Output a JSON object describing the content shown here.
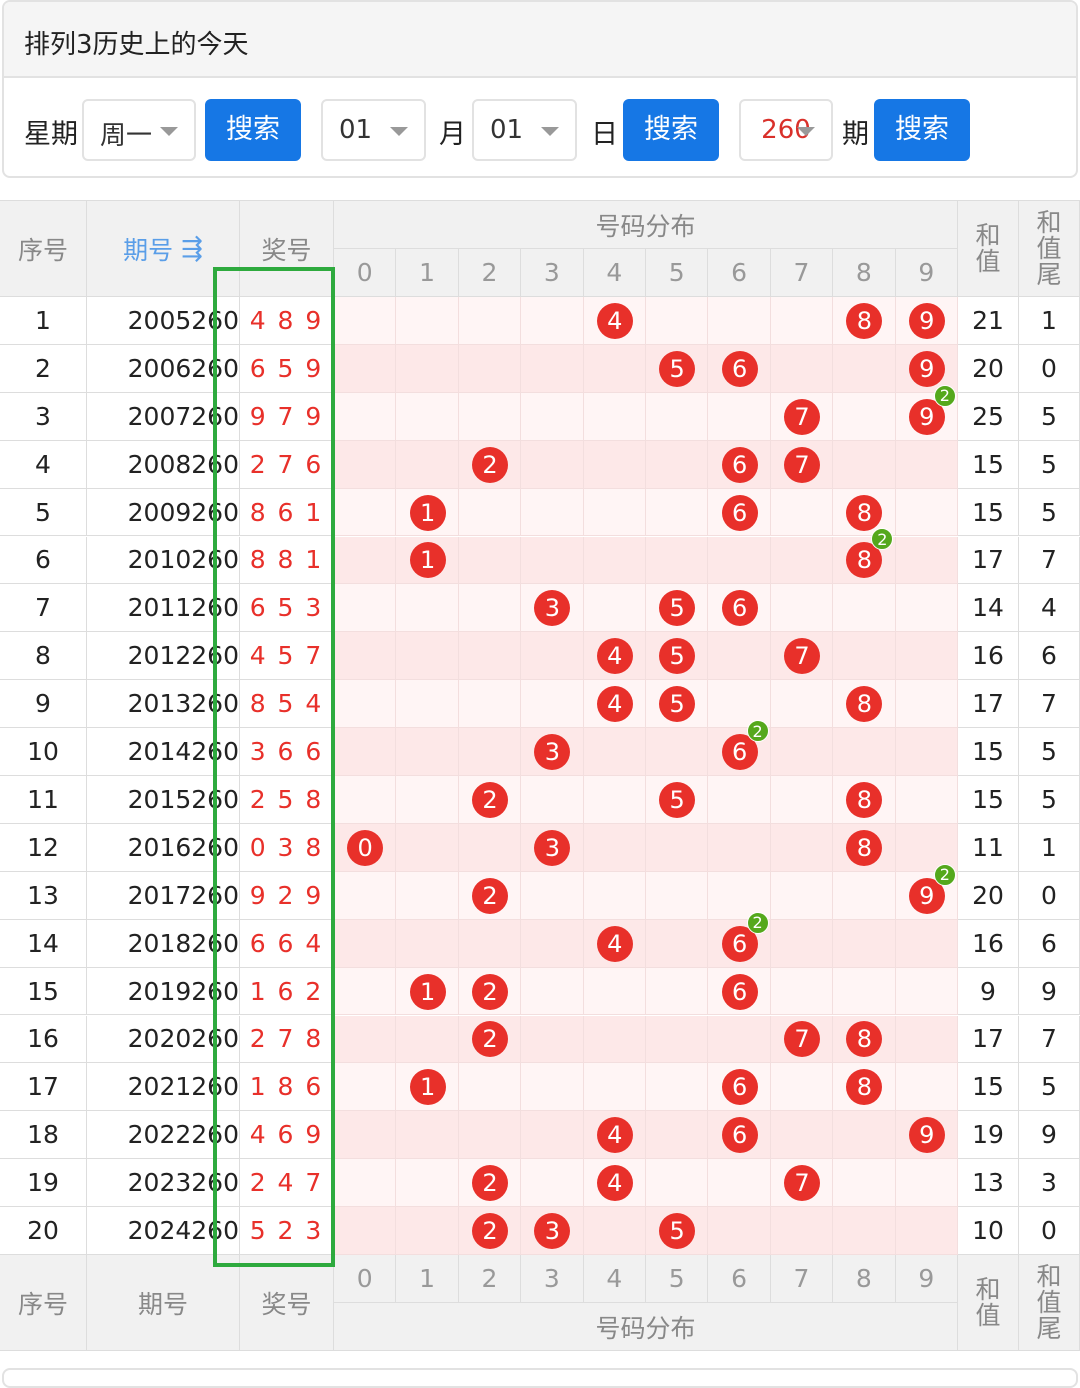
{
  "header": {
    "title": "排列3历史上的今天"
  },
  "controls": {
    "week_label": "星期",
    "week_value": "周一",
    "search1": "搜索",
    "month_value": "01",
    "month_label": "月",
    "day_value": "01",
    "day_label": "日",
    "search2": "搜索",
    "issue_value": "260",
    "issue_label": "期",
    "search3": "搜索"
  },
  "table": {
    "head": {
      "seq": "序号",
      "period": "期号",
      "number": "奖号",
      "distribution": "号码分布",
      "sum": "和值",
      "tail": "和值尾"
    },
    "digits": [
      0,
      1,
      2,
      3,
      4,
      5,
      6,
      7,
      8,
      9
    ],
    "foot": {
      "seq": "序号",
      "period": "期号",
      "number": "奖号",
      "distribution": "号码分布",
      "sum": "和值",
      "tail": "和值尾"
    },
    "rows": [
      {
        "seq": 1,
        "period": "2005260",
        "number": "4 8 9",
        "balls": [
          {
            "digit": 4
          },
          {
            "digit": 8
          },
          {
            "digit": 9
          }
        ],
        "sum": 21,
        "tail": 1
      },
      {
        "seq": 2,
        "period": "2006260",
        "number": "6 5 9",
        "balls": [
          {
            "digit": 5
          },
          {
            "digit": 6
          },
          {
            "digit": 9
          }
        ],
        "sum": 20,
        "tail": 0
      },
      {
        "seq": 3,
        "period": "2007260",
        "number": "9 7 9",
        "balls": [
          {
            "digit": 7
          },
          {
            "digit": 9,
            "count": 2
          }
        ],
        "sum": 25,
        "tail": 5
      },
      {
        "seq": 4,
        "period": "2008260",
        "number": "2 7 6",
        "balls": [
          {
            "digit": 2
          },
          {
            "digit": 6
          },
          {
            "digit": 7
          }
        ],
        "sum": 15,
        "tail": 5
      },
      {
        "seq": 5,
        "period": "2009260",
        "number": "8 6 1",
        "balls": [
          {
            "digit": 1
          },
          {
            "digit": 6
          },
          {
            "digit": 8
          }
        ],
        "sum": 15,
        "tail": 5
      },
      {
        "seq": 6,
        "period": "2010260",
        "number": "8 8 1",
        "balls": [
          {
            "digit": 1
          },
          {
            "digit": 8,
            "count": 2
          }
        ],
        "sum": 17,
        "tail": 7
      },
      {
        "seq": 7,
        "period": "2011260",
        "number": "6 5 3",
        "balls": [
          {
            "digit": 3
          },
          {
            "digit": 5
          },
          {
            "digit": 6
          }
        ],
        "sum": 14,
        "tail": 4
      },
      {
        "seq": 8,
        "period": "2012260",
        "number": "4 5 7",
        "balls": [
          {
            "digit": 4
          },
          {
            "digit": 5
          },
          {
            "digit": 7
          }
        ],
        "sum": 16,
        "tail": 6
      },
      {
        "seq": 9,
        "period": "2013260",
        "number": "8 5 4",
        "balls": [
          {
            "digit": 4
          },
          {
            "digit": 5
          },
          {
            "digit": 8
          }
        ],
        "sum": 17,
        "tail": 7
      },
      {
        "seq": 10,
        "period": "2014260",
        "number": "3 6 6",
        "balls": [
          {
            "digit": 3
          },
          {
            "digit": 6,
            "count": 2
          }
        ],
        "sum": 15,
        "tail": 5
      },
      {
        "seq": 11,
        "period": "2015260",
        "number": "2 5 8",
        "balls": [
          {
            "digit": 2
          },
          {
            "digit": 5
          },
          {
            "digit": 8
          }
        ],
        "sum": 15,
        "tail": 5
      },
      {
        "seq": 12,
        "period": "2016260",
        "number": "0 3 8",
        "balls": [
          {
            "digit": 0
          },
          {
            "digit": 3
          },
          {
            "digit": 8
          }
        ],
        "sum": 11,
        "tail": 1
      },
      {
        "seq": 13,
        "period": "2017260",
        "number": "9 2 9",
        "balls": [
          {
            "digit": 2
          },
          {
            "digit": 9,
            "count": 2
          }
        ],
        "sum": 20,
        "tail": 0
      },
      {
        "seq": 14,
        "period": "2018260",
        "number": "6 6 4",
        "balls": [
          {
            "digit": 4
          },
          {
            "digit": 6,
            "count": 2
          }
        ],
        "sum": 16,
        "tail": 6
      },
      {
        "seq": 15,
        "period": "2019260",
        "number": "1 6 2",
        "balls": [
          {
            "digit": 1
          },
          {
            "digit": 2
          },
          {
            "digit": 6
          }
        ],
        "sum": 9,
        "tail": 9
      },
      {
        "seq": 16,
        "period": "2020260",
        "number": "2 7 8",
        "balls": [
          {
            "digit": 2
          },
          {
            "digit": 7
          },
          {
            "digit": 8
          }
        ],
        "sum": 17,
        "tail": 7
      },
      {
        "seq": 17,
        "period": "2021260",
        "number": "1 8 6",
        "balls": [
          {
            "digit": 1
          },
          {
            "digit": 6
          },
          {
            "digit": 8
          }
        ],
        "sum": 15,
        "tail": 5
      },
      {
        "seq": 18,
        "period": "2022260",
        "number": "4 6 9",
        "balls": [
          {
            "digit": 4
          },
          {
            "digit": 6
          },
          {
            "digit": 9
          }
        ],
        "sum": 19,
        "tail": 9
      },
      {
        "seq": 19,
        "period": "2023260",
        "number": "2 4 7",
        "balls": [
          {
            "digit": 2
          },
          {
            "digit": 4
          },
          {
            "digit": 7
          }
        ],
        "sum": 13,
        "tail": 3
      },
      {
        "seq": 20,
        "period": "2024260",
        "number": "5 2 3",
        "balls": [
          {
            "digit": 2
          },
          {
            "digit": 3
          },
          {
            "digit": 5
          }
        ],
        "sum": 10,
        "tail": 0
      }
    ]
  }
}
